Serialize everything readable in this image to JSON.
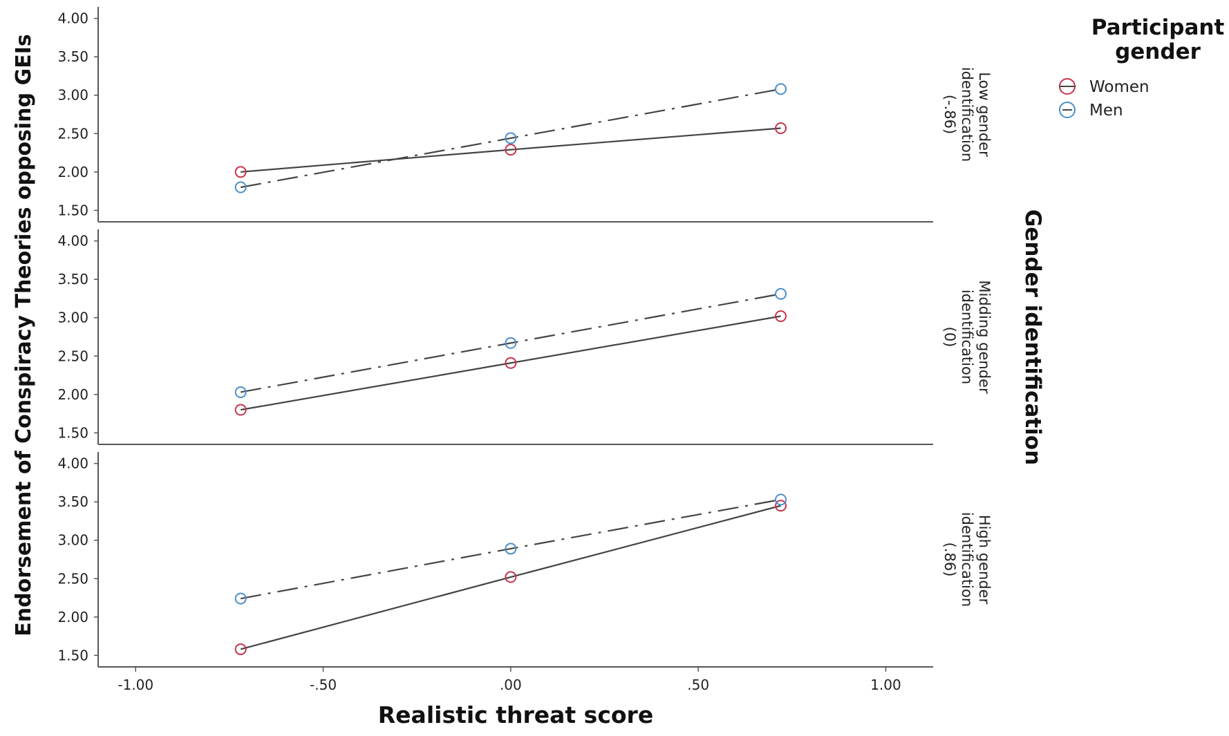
{
  "chart_data": {
    "type": "line",
    "xlabel": "Realistic threat score",
    "ylabel": "Endorsement of Conspiracy Theories opposing GEIs",
    "facet_label": "Gender identification",
    "xlim": [
      -1.1,
      1.13
    ],
    "ylim": [
      1.35,
      4.15
    ],
    "x_ticks": [
      -1.0,
      -0.5,
      0.0,
      0.5,
      1.0
    ],
    "x_tick_labels": [
      "-1.00",
      "-.50",
      ".00",
      ".50",
      "1.00"
    ],
    "y_ticks": [
      1.5,
      2.0,
      2.5,
      3.0,
      3.5,
      4.0
    ],
    "y_tick_labels": [
      "1.50",
      "2.00",
      "2.50",
      "3.00",
      "3.50",
      "4.00"
    ],
    "legend": {
      "title_line1": "Participant",
      "title_line2": "gender",
      "position": "top-right",
      "entries": [
        "Women",
        "Men"
      ]
    },
    "colors": {
      "Women": "#c8324b",
      "Men": "#4a8fcc",
      "line": "#444444"
    },
    "panels": [
      {
        "label_lines": [
          "Low gender",
          "identification",
          "(-.86)"
        ],
        "series": [
          {
            "name": "Women",
            "x": [
              -0.72,
              0.0,
              0.72
            ],
            "y": [
              2.0,
              2.29,
              2.57
            ]
          },
          {
            "name": "Men",
            "x": [
              -0.72,
              0.0,
              0.72
            ],
            "y": [
              1.8,
              2.44,
              3.08
            ]
          }
        ]
      },
      {
        "label_lines": [
          "Midding gender",
          "identification",
          "(0)"
        ],
        "series": [
          {
            "name": "Women",
            "x": [
              -0.72,
              0.0,
              0.72
            ],
            "y": [
              1.8,
              2.41,
              3.02
            ]
          },
          {
            "name": "Men",
            "x": [
              -0.72,
              0.0,
              0.72
            ],
            "y": [
              2.03,
              2.67,
              3.31
            ]
          }
        ]
      },
      {
        "label_lines": [
          "High gender",
          "identification",
          "(.86)"
        ],
        "series": [
          {
            "name": "Women",
            "x": [
              -0.72,
              0.0,
              0.72
            ],
            "y": [
              1.58,
              2.52,
              3.45
            ]
          },
          {
            "name": "Men",
            "x": [
              -0.72,
              0.0,
              0.72
            ],
            "y": [
              2.24,
              2.89,
              3.53
            ]
          }
        ]
      }
    ]
  }
}
